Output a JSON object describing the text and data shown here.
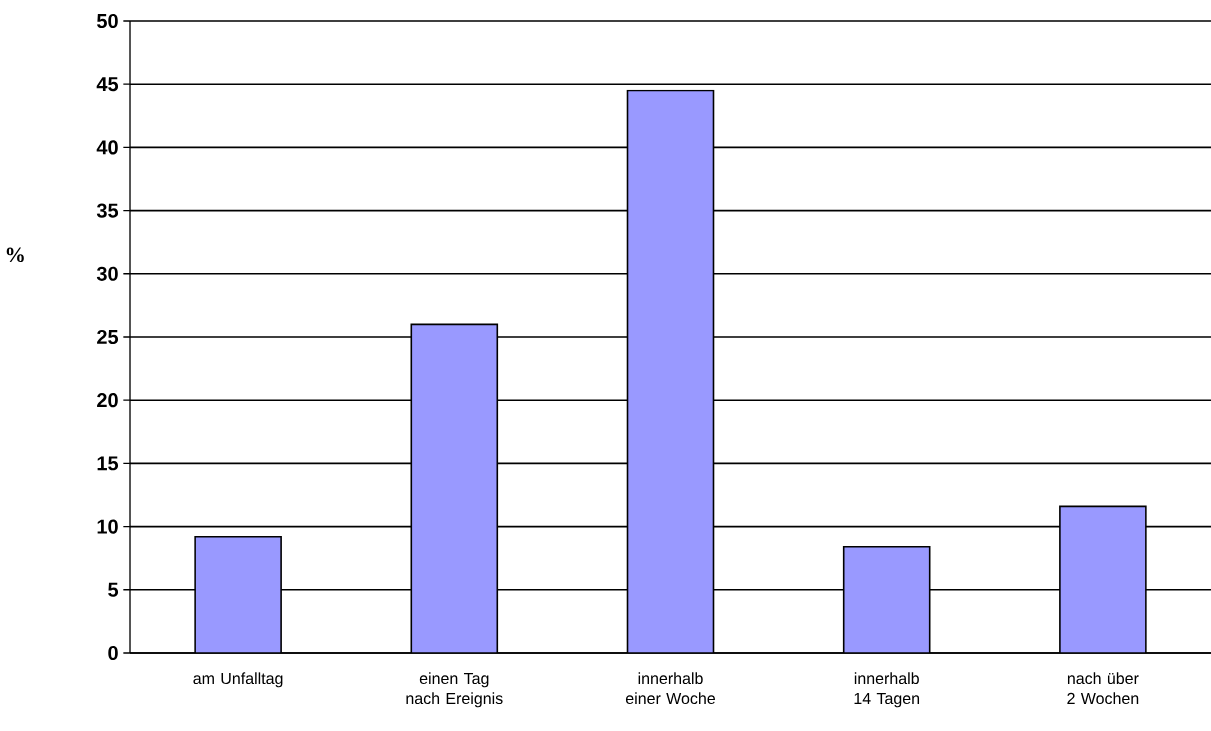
{
  "chart_data": {
    "type": "bar",
    "ylabel": "%",
    "categories": [
      "am Unfalltag",
      "einen Tag nach Ereignis",
      "innerhalb einer Woche",
      "innerhalb 14 Tagen",
      "nach über 2 Wochen"
    ],
    "values": [
      9.2,
      26.0,
      44.5,
      8.4,
      11.6
    ],
    "color": "#9999ff",
    "ylim": [
      0,
      50
    ],
    "yticks": [
      0,
      5,
      10,
      15,
      20,
      25,
      30,
      35,
      40,
      45,
      50
    ],
    "grid": "y"
  }
}
